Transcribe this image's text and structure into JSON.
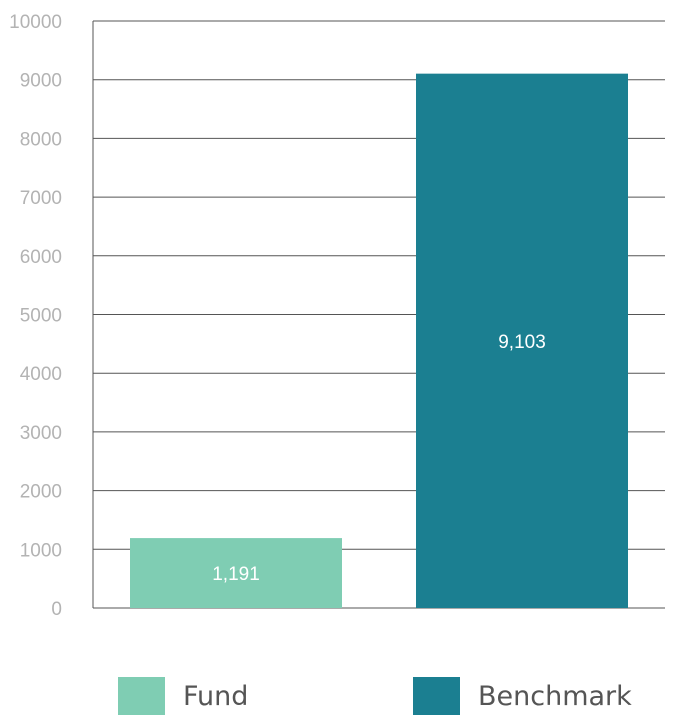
{
  "chart_data": {
    "type": "bar",
    "categories": [
      "Fund",
      "Benchmark"
    ],
    "values": [
      1191,
      9103
    ],
    "data_labels": [
      "1,191",
      "9,103"
    ],
    "colors": [
      "#7fcdb3",
      "#1b7f91"
    ],
    "ylim": [
      0,
      10000
    ],
    "yticks": [
      "0",
      "1000",
      "2000",
      "3000",
      "4000",
      "5000",
      "6000",
      "7000",
      "8000",
      "9000",
      "10000"
    ],
    "title": "",
    "xlabel": "",
    "ylabel": "",
    "grid": true,
    "legend_position": "bottom"
  },
  "legend": [
    {
      "label": "Fund",
      "color": "#7fcdb3"
    },
    {
      "label": "Benchmark",
      "color": "#1b7f91"
    }
  ]
}
